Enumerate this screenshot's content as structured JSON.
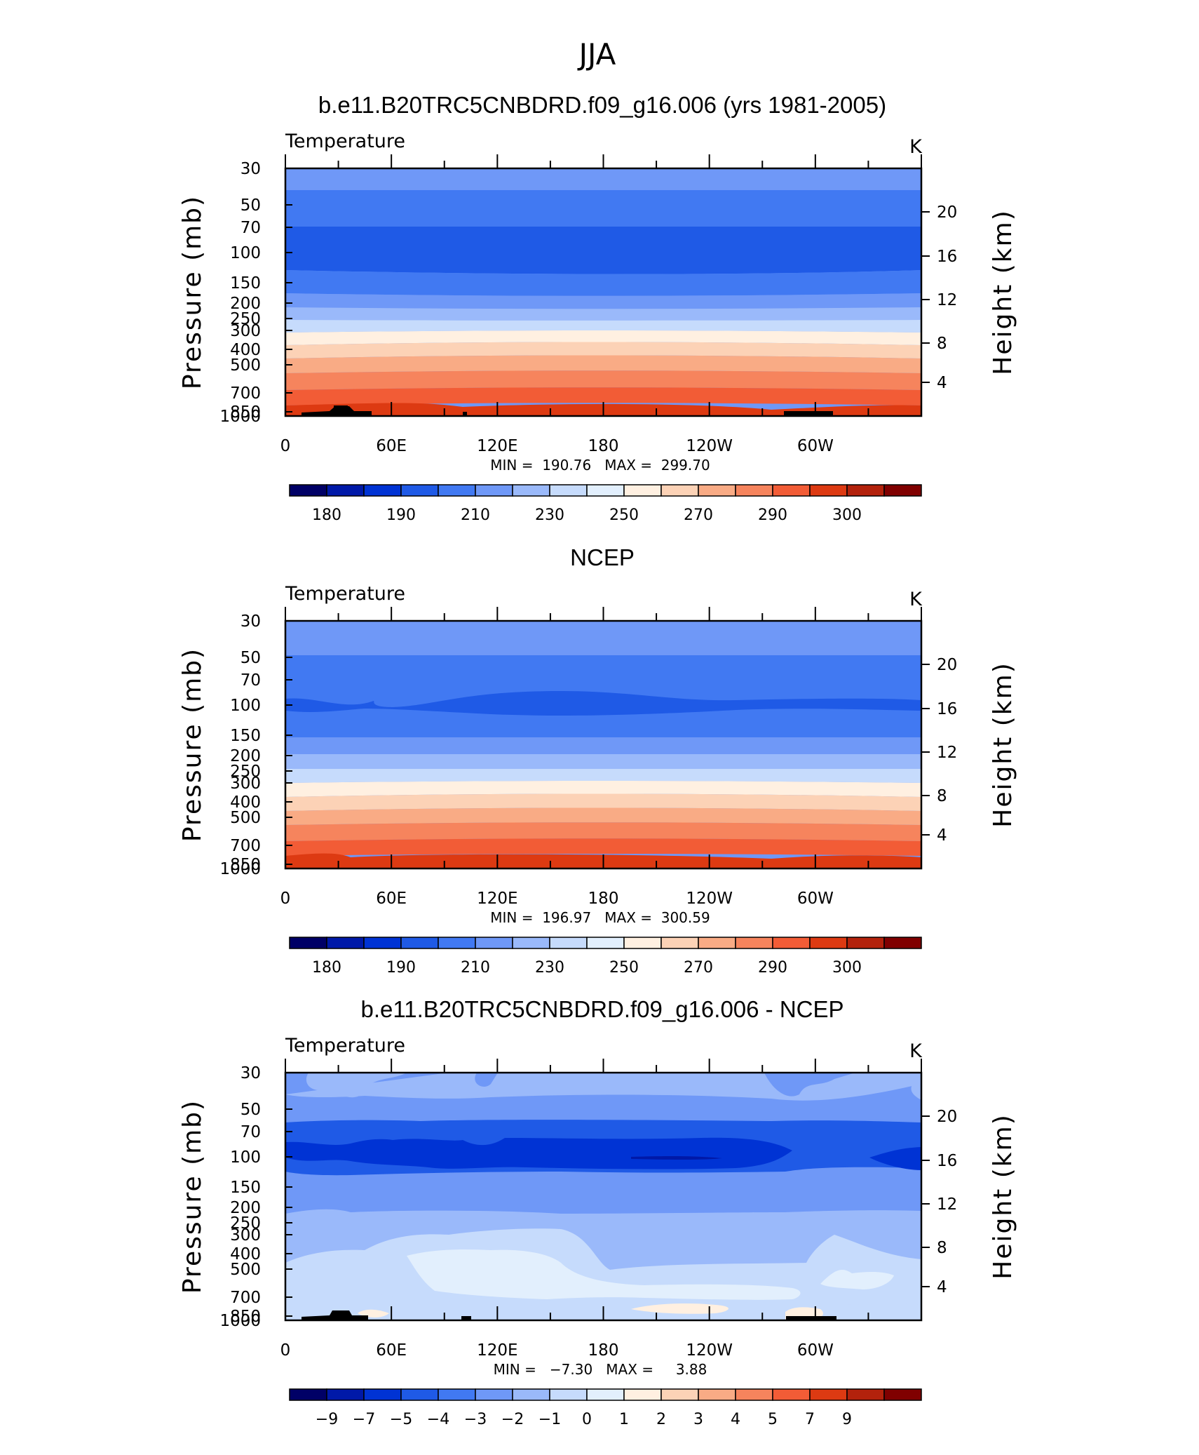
{
  "figure": {
    "title": "JJA",
    "y_label_left": "Pressure (mb)",
    "y_label_right": "Height (km)",
    "pressure_ticks": [
      "30",
      "50",
      "70",
      "100",
      "150",
      "200",
      "250",
      "300",
      "400",
      "500",
      "700",
      "850",
      "1000"
    ],
    "height_ticks": [
      "20",
      "16",
      "12",
      "8",
      "4"
    ],
    "lon_ticks": [
      "0",
      "60E",
      "120E",
      "180",
      "120W",
      "60W"
    ]
  },
  "colors": {
    "temp_scale": [
      "#000066",
      "#0019a8",
      "#0033d4",
      "#1f5ae6",
      "#4179f2",
      "#6f98f7",
      "#9ab9fa",
      "#c6dbfc",
      "#e2effd",
      "#fff0e1",
      "#fcd2b6",
      "#f9ab85",
      "#f6845d",
      "#f25c36",
      "#dd3a12",
      "#b3220c",
      "#800000"
    ],
    "diff_scale": [
      "#000066",
      "#0019a8",
      "#0033d4",
      "#1f5ae6",
      "#4179f2",
      "#6f98f7",
      "#9ab9fa",
      "#c6dbfc",
      "#e2effd",
      "#fff0e1",
      "#fcd2b6",
      "#f9ab85",
      "#f6845d",
      "#f25c36",
      "#dd3a12",
      "#b3220c",
      "#800000"
    ],
    "topography": "#000000"
  },
  "panels": [
    {
      "title": "b.e11.B20TRC5CNBDRD.f09_g16.006 (yrs 1981-2005)",
      "left_label": "Temperature",
      "units": "K",
      "stats": "MIN =  190.76   MAX =  299.70",
      "colorbar_labels": [
        "180",
        "190",
        "210",
        "230",
        "250",
        "270",
        "290",
        "300"
      ]
    },
    {
      "title": "NCEP",
      "left_label": "Temperature",
      "units": "K",
      "stats": "MIN =  196.97   MAX =  300.59",
      "colorbar_labels": [
        "180",
        "190",
        "210",
        "230",
        "250",
        "270",
        "290",
        "300"
      ]
    },
    {
      "title": "b.e11.B20TRC5CNBDRD.f09_g16.006 - NCEP",
      "left_label": "Temperature",
      "units": "K",
      "stats": "MIN =   −7.30   MAX =     3.88",
      "colorbar_labels": [
        "−9",
        "−7",
        "−5",
        "−4",
        "−3",
        "−2",
        "−1",
        "0",
        "1",
        "2",
        "3",
        "4",
        "5",
        "7",
        "9"
      ]
    }
  ],
  "chart_data": [
    {
      "type": "heatmap",
      "title": "b.e11.B20TRC5CNBDRD.f09_g16.006 (yrs 1981-2005)",
      "variable": "Temperature",
      "units": "K",
      "x_axis": "longitude",
      "y_axis": "pressure (mb), log scale",
      "ylim": [
        1000,
        30
      ],
      "xlim": [
        0,
        360
      ],
      "min": 190.76,
      "max": 299.7,
      "contour_levels": [
        180,
        185,
        190,
        200,
        210,
        220,
        230,
        240,
        250,
        260,
        270,
        280,
        290,
        295,
        300,
        305
      ],
      "bands": [
        {
          "p_top": 30,
          "p_bottom": 40,
          "value_class": 210
        },
        {
          "p_top": 40,
          "p_bottom": 70,
          "value_class": 200
        },
        {
          "p_top": 70,
          "p_bottom": 140,
          "value_class": 190
        },
        {
          "p_top": 140,
          "p_bottom": 180,
          "value_class": 200
        },
        {
          "p_top": 180,
          "p_bottom": 230,
          "value_class": 210
        },
        {
          "p_top": 230,
          "p_bottom": 270,
          "value_class": 220
        },
        {
          "p_top": 270,
          "p_bottom": 310,
          "value_class": 230
        },
        {
          "p_top": 310,
          "p_bottom": 370,
          "value_class": 240
        },
        {
          "p_top": 370,
          "p_bottom": 450,
          "value_class": 250
        },
        {
          "p_top": 450,
          "p_bottom": 540,
          "value_class": 260
        },
        {
          "p_top": 540,
          "p_bottom": 640,
          "value_class": 270
        },
        {
          "p_top": 640,
          "p_bottom": 760,
          "value_class": 280
        },
        {
          "p_top": 760,
          "p_bottom": 880,
          "value_class": 290
        },
        {
          "p_top": 880,
          "p_bottom": 1000,
          "value_class": 295
        }
      ]
    },
    {
      "type": "heatmap",
      "title": "NCEP",
      "variable": "Temperature",
      "units": "K",
      "x_axis": "longitude",
      "y_axis": "pressure (mb), log scale",
      "ylim": [
        1000,
        30
      ],
      "xlim": [
        0,
        360
      ],
      "min": 196.97,
      "max": 300.59,
      "contour_levels": [
        180,
        185,
        190,
        200,
        210,
        220,
        230,
        240,
        250,
        260,
        270,
        280,
        290,
        295,
        300,
        305
      ],
      "bands": [
        {
          "p_top": 30,
          "p_bottom": 48,
          "value_class": 210
        },
        {
          "p_top": 48,
          "p_bottom": 150,
          "value_class": 200
        },
        {
          "p_top": 90,
          "p_bottom": 110,
          "value_class": 190
        },
        {
          "p_top": 150,
          "p_bottom": 200,
          "value_class": 210
        },
        {
          "p_top": 200,
          "p_bottom": 240,
          "value_class": 220
        },
        {
          "p_top": 240,
          "p_bottom": 290,
          "value_class": 230
        },
        {
          "p_top": 290,
          "p_bottom": 350,
          "value_class": 240
        },
        {
          "p_top": 350,
          "p_bottom": 430,
          "value_class": 250
        },
        {
          "p_top": 430,
          "p_bottom": 520,
          "value_class": 260
        },
        {
          "p_top": 520,
          "p_bottom": 620,
          "value_class": 270
        },
        {
          "p_top": 620,
          "p_bottom": 740,
          "value_class": 280
        },
        {
          "p_top": 740,
          "p_bottom": 880,
          "value_class": 290
        },
        {
          "p_top": 880,
          "p_bottom": 1000,
          "value_class": 295
        }
      ]
    },
    {
      "type": "heatmap",
      "title": "b.e11.B20TRC5CNBDRD.f09_g16.006 - NCEP",
      "variable": "Temperature",
      "units": "K",
      "x_axis": "longitude",
      "y_axis": "pressure (mb), log scale",
      "ylim": [
        1000,
        30
      ],
      "xlim": [
        0,
        360
      ],
      "min": -7.3,
      "max": 3.88,
      "contour_levels": [
        -9,
        -7,
        -5,
        -4,
        -3,
        -2,
        -1,
        0,
        1,
        2,
        3,
        4,
        5,
        7,
        9
      ],
      "bands": [
        {
          "p_top": 30,
          "p_bottom": 65,
          "value_class": -3
        },
        {
          "p_top": 65,
          "p_bottom": 80,
          "value_class": -4
        },
        {
          "p_top": 80,
          "p_bottom": 130,
          "value_class": -5
        },
        {
          "p_top": 130,
          "p_bottom": 260,
          "value_class": -4
        },
        {
          "p_top": 260,
          "p_bottom": 400,
          "value_class": -3
        },
        {
          "p_top": 400,
          "p_bottom": 800,
          "value_class": -2
        },
        {
          "p_top": 800,
          "p_bottom": 1000,
          "value_class": -1
        }
      ]
    }
  ]
}
